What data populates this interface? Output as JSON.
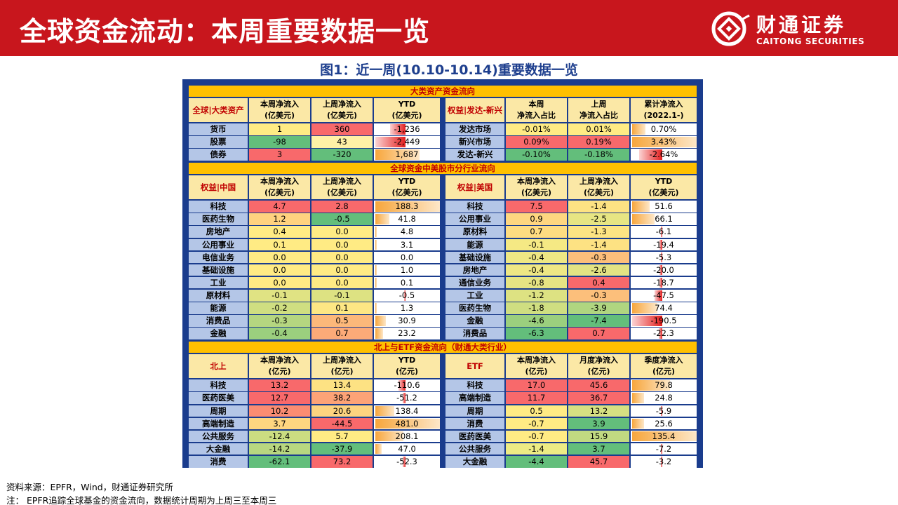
{
  "header": {
    "title": "全球资金流动：本周重要数据一览",
    "logo_cn": "财通证券",
    "logo_en": "CAITONG SECURITIES"
  },
  "figure_title": "图1：近一周(10.10-10.14)重要数据一览",
  "colors": {
    "brand_red": "#c8161d",
    "navy": "#1a3c8d",
    "band_gold": "#ffc000",
    "header_cell": "#fbe8a6",
    "label_blue": "#b4c6e7"
  },
  "sections": [
    {
      "title": "大类资产资金流向",
      "left": {
        "headers": [
          "全球|大类资产",
          "本周净流入\n(亿美元)",
          "上周净流入\n(亿美元)",
          "YTD\n(亿美元)"
        ],
        "rows": [
          [
            "货币",
            "1",
            "360",
            "-1,236"
          ],
          [
            "股票",
            "-98",
            "43",
            "-2,449"
          ],
          [
            "债券",
            "3",
            "-320",
            "1,687"
          ]
        ],
        "ytd": [
          -1236,
          -2449,
          1687
        ],
        "colors": [
          [
            "#ffeb84",
            "#f8696b"
          ],
          [
            "#63be7b",
            "#fff1a6"
          ],
          [
            "#f8696b",
            "#63be7b"
          ]
        ]
      },
      "right": {
        "headers": [
          "权益|发达-新兴",
          "本周\n净流入占比",
          "上周\n净流入占比",
          "累计净流入\n(2022.1-)"
        ],
        "rows": [
          [
            "发达市场",
            "-0.01%",
            "0.01%",
            "0.70%"
          ],
          [
            "新兴市场",
            "0.09%",
            "0.19%",
            "3.43%"
          ],
          [
            "发达-新兴",
            "-0.10%",
            "-0.18%",
            "-2.64%"
          ]
        ],
        "ytd": [
          0.7,
          3.43,
          -2.64
        ],
        "colors": [
          [
            "#ffeb84",
            "#ffeb84"
          ],
          [
            "#f8696b",
            "#f8696b"
          ],
          [
            "#63be7b",
            "#63be7b"
          ]
        ]
      }
    },
    {
      "title": "全球资金中美股市分行业流向",
      "left": {
        "headers": [
          "权益|中国",
          "本周净流入\n(亿美元)",
          "上周净流入\n(亿美元)",
          "YTD\n(亿美元)"
        ],
        "rows": [
          [
            "科技",
            "4.7",
            "2.8",
            "188.3"
          ],
          [
            "医药生物",
            "1.2",
            "-0.5",
            "41.8"
          ],
          [
            "房地产",
            "0.4",
            "0.0",
            "4.8"
          ],
          [
            "公用事业",
            "0.1",
            "0.0",
            "3.1"
          ],
          [
            "电信业务",
            "0.0",
            "0.0",
            "0.0"
          ],
          [
            "基础设施",
            "0.0",
            "0.0",
            "1.0"
          ],
          [
            "工业",
            "0.0",
            "0.0",
            "0.1"
          ],
          [
            "原材料",
            "-0.1",
            "-0.1",
            "-0.5"
          ],
          [
            "能源",
            "-0.2",
            "0.1",
            "1.3"
          ],
          [
            "消费品",
            "-0.3",
            "0.5",
            "30.9"
          ],
          [
            "金融",
            "-0.4",
            "0.7",
            "23.2"
          ]
        ],
        "ytd": [
          188.3,
          41.8,
          4.8,
          3.1,
          0.0,
          1.0,
          0.1,
          -0.5,
          1.3,
          30.9,
          23.2
        ],
        "colors": [
          [
            "#f8696b",
            "#f8696b"
          ],
          [
            "#ffd27f",
            "#63be7b"
          ],
          [
            "#ffeb84",
            "#ffeb84"
          ],
          [
            "#ffeb84",
            "#ffeb84"
          ],
          [
            "#ffeb84",
            "#ffeb84"
          ],
          [
            "#ffeb84",
            "#ffeb84"
          ],
          [
            "#ffeb84",
            "#ffeb84"
          ],
          [
            "#e0e383",
            "#dde282"
          ],
          [
            "#cfde81",
            "#fde784"
          ],
          [
            "#b5d680",
            "#fcb87a"
          ],
          [
            "#9bcf7e",
            "#fcaa78"
          ]
        ]
      },
      "right": {
        "headers": [
          "权益|美国",
          "本周净流入\n(亿美元)",
          "上周净流入\n(亿美元)",
          "YTD\n(亿美元)"
        ],
        "rows": [
          [
            "科技",
            "7.5",
            "-1.4",
            "51.6"
          ],
          [
            "公用事业",
            "0.9",
            "-2.5",
            "66.1"
          ],
          [
            "原材料",
            "0.7",
            "-1.3",
            "-6.1"
          ],
          [
            "能源",
            "-0.1",
            "-1.4",
            "-19.4"
          ],
          [
            "基础设施",
            "-0.4",
            "-0.3",
            "-5.3"
          ],
          [
            "房地产",
            "-0.4",
            "-2.6",
            "-20.0"
          ],
          [
            "通信业务",
            "-0.8",
            "0.4",
            "-18.7"
          ],
          [
            "工业",
            "-1.2",
            "-0.3",
            "-47.5"
          ],
          [
            "医药生物",
            "-1.8",
            "-3.9",
            "74.4"
          ],
          [
            "金融",
            "-4.6",
            "-7.4",
            "-190.5"
          ],
          [
            "消费品",
            "-6.3",
            "0.7",
            "-22.3"
          ]
        ],
        "ytd": [
          51.6,
          66.1,
          -6.1,
          -19.4,
          -5.3,
          -20.0,
          -18.7,
          -47.5,
          74.4,
          -190.5,
          -22.3
        ],
        "colors": [
          [
            "#f8696b",
            "#fde283"
          ],
          [
            "#fed680",
            "#e7e583"
          ],
          [
            "#fedc81",
            "#fde483"
          ],
          [
            "#f5e984",
            "#fde283"
          ],
          [
            "#eee784",
            "#fcbf7b"
          ],
          [
            "#eee784",
            "#e3e383"
          ],
          [
            "#e6e483",
            "#f8696b"
          ],
          [
            "#dde282",
            "#fcbf7b"
          ],
          [
            "#cfde81",
            "#b0d580"
          ],
          [
            "#9bcf7e",
            "#63be7b"
          ],
          [
            "#63be7b",
            "#f8696b"
          ]
        ]
      }
    },
    {
      "title": "北上与ETF资金流向（财通大类行业）",
      "left": {
        "headers": [
          "北上",
          "本周净流入\n(亿元)",
          "上周净流入\n(亿元)",
          "YTD\n(亿元)"
        ],
        "rows": [
          [
            "科技",
            "13.2",
            "13.4",
            "-110.6"
          ],
          [
            "医药医美",
            "12.7",
            "38.2",
            "-51.2"
          ],
          [
            "周期",
            "10.2",
            "20.6",
            "138.4"
          ],
          [
            "高端制造",
            "3.7",
            "-44.5",
            "481.0"
          ],
          [
            "公共服务",
            "-12.4",
            "5.7",
            "208.1"
          ],
          [
            "大金融",
            "-14.2",
            "-37.9",
            "47.0"
          ],
          [
            "消费",
            "-62.1",
            "73.2",
            "-52.3"
          ]
        ],
        "ytd": [
          -110.6,
          -51.2,
          138.4,
          481.0,
          208.1,
          47.0,
          -52.3
        ],
        "colors": [
          [
            "#f8696b",
            "#fde283"
          ],
          [
            "#f8696b",
            "#fca377"
          ],
          [
            "#fa8c72",
            "#fdd37f"
          ],
          [
            "#fed680",
            "#f8696b"
          ],
          [
            "#cbdd81",
            "#ffeb84"
          ],
          [
            "#b8d780",
            "#63be7b"
          ],
          [
            "#63be7b",
            "#f8696b"
          ]
        ]
      },
      "right": {
        "headers": [
          "ETF",
          "本周净流入\n(亿元)",
          "月度净流入\n(亿元)",
          "季度净流入\n(亿元)"
        ],
        "rows": [
          [
            "科技",
            "17.0",
            "45.6",
            "79.8"
          ],
          [
            "高端制造",
            "11.7",
            "36.7",
            "24.8"
          ],
          [
            "周期",
            "0.5",
            "13.2",
            "-5.9"
          ],
          [
            "消费",
            "-0.7",
            "3.9",
            "25.6"
          ],
          [
            "医药医美",
            "-0.7",
            "15.9",
            "135.4"
          ],
          [
            "公共服务",
            "-1.4",
            "3.7",
            "-7.2"
          ],
          [
            "大金融",
            "-4.4",
            "45.7",
            "-3.2"
          ]
        ],
        "ytd": [
          79.8,
          24.8,
          -5.9,
          25.6,
          135.4,
          -7.2,
          -3.2
        ],
        "colors": [
          [
            "#f8696b",
            "#f8696b"
          ],
          [
            "#f8696b",
            "#f8696b"
          ],
          [
            "#ffeb84",
            "#d6e082"
          ],
          [
            "#ffeb84",
            "#63be7b"
          ],
          [
            "#ffeb84",
            "#c1d981"
          ],
          [
            "#edeb84",
            "#63be7b"
          ],
          [
            "#63be7b",
            "#f8696b"
          ]
        ]
      }
    }
  ],
  "footnotes": [
    "资料来源：EPFR，Wind，财通证券研究所",
    "注：  EPFR追踪全球基金的资金流向，数据统计周期为上周三至本周三"
  ]
}
